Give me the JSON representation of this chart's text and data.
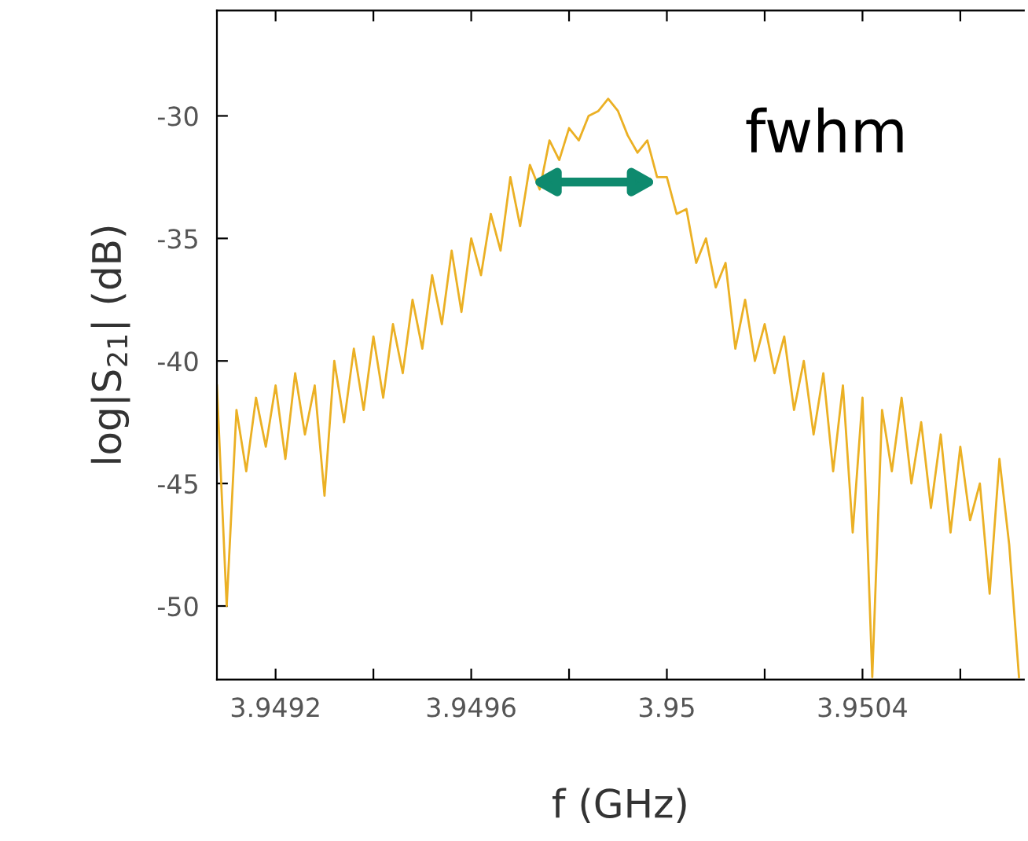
{
  "chart_data": {
    "type": "line",
    "xlabel": "f (GHz)",
    "ylabel": "log|S$_{21}$| (dB)",
    "x": [
      3.94908,
      3.9491,
      3.94912,
      3.94914,
      3.94916,
      3.94918,
      3.9492,
      3.94922,
      3.94924,
      3.94926,
      3.94928,
      3.9493,
      3.94932,
      3.94934,
      3.94936,
      3.94938,
      3.9494,
      3.94942,
      3.94944,
      3.94946,
      3.94948,
      3.9495,
      3.94952,
      3.94954,
      3.94956,
      3.94958,
      3.9496,
      3.94962,
      3.94964,
      3.94966,
      3.94968,
      3.9497,
      3.94972,
      3.94974,
      3.94976,
      3.94978,
      3.9498,
      3.94982,
      3.94984,
      3.94986,
      3.94988,
      3.9499,
      3.94992,
      3.94994,
      3.94996,
      3.94998,
      3.95,
      3.95002,
      3.95004,
      3.95006,
      3.95008,
      3.9501,
      3.95012,
      3.95014,
      3.95016,
      3.95018,
      3.9502,
      3.95022,
      3.95024,
      3.95026,
      3.95028,
      3.9503,
      3.95032,
      3.95034,
      3.95036,
      3.95038,
      3.9504,
      3.95042,
      3.95044,
      3.95046,
      3.95048,
      3.9505,
      3.95052,
      3.95054,
      3.95056,
      3.95058,
      3.9506,
      3.95062,
      3.95064,
      3.95066,
      3.95068,
      3.9507,
      3.95072
    ],
    "series": [
      {
        "color": "#ebb024",
        "values": [
          -41,
          -50,
          -42,
          -44.5,
          -41.5,
          -43.5,
          -41,
          -44,
          -40.5,
          -43,
          -41,
          -45.5,
          -40,
          -42.5,
          -39.5,
          -42,
          -39,
          -41.5,
          -38.5,
          -40.5,
          -37.5,
          -39.5,
          -36.5,
          -38.5,
          -35.5,
          -38,
          -35,
          -36.5,
          -34,
          -35.5,
          -32.5,
          -34.5,
          -32,
          -33,
          -31,
          -31.8,
          -30.5,
          -31,
          -30,
          -29.8,
          -29.3,
          -29.8,
          -30.8,
          -31.5,
          -31,
          -32.5,
          -32.5,
          -34,
          -33.8,
          -36,
          -35,
          -37,
          -36,
          -39.5,
          -37.5,
          -40,
          -38.5,
          -40.5,
          -39,
          -42,
          -40,
          -43,
          -40.5,
          -44.5,
          -41,
          -47,
          -41.5,
          -52.9,
          -42,
          -44.5,
          -41.5,
          -45,
          -42.5,
          -46,
          -43,
          -47,
          -43.5,
          -46.5,
          -45,
          -49.5,
          -44,
          -47.5,
          -52.9
        ]
      }
    ],
    "xlim": [
      3.94908,
      3.95073
    ],
    "ylim": [
      -53,
      -25.7
    ],
    "xticks": [
      {
        "value": 3.9492,
        "label": "3.9492"
      },
      {
        "value": 3.9494,
        "label": null
      },
      {
        "value": 3.9496,
        "label": "3.9496"
      },
      {
        "value": 3.9498,
        "label": null
      },
      {
        "value": 3.95,
        "label": "3.95"
      },
      {
        "value": 3.9502,
        "label": null
      },
      {
        "value": 3.9504,
        "label": "3.9504"
      },
      {
        "value": 3.9506,
        "label": null
      }
    ],
    "yticks": [
      -50,
      -45,
      -40,
      -35,
      -30
    ],
    "annotations": [
      {
        "text": "fwhm",
        "x": 3.94999,
        "y": -32.7
      }
    ],
    "grid": false,
    "legend": false
  }
}
